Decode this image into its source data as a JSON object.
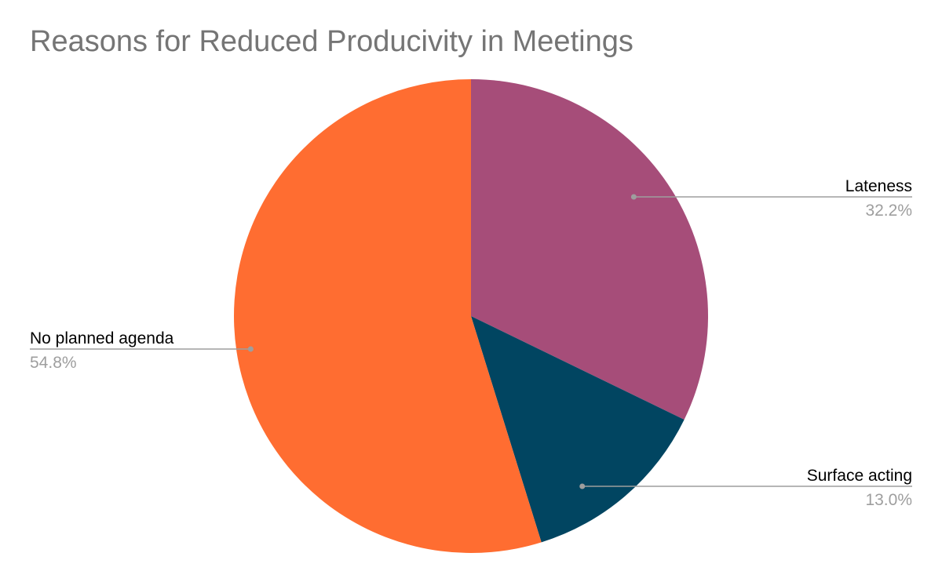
{
  "chart_data": {
    "type": "pie",
    "title": "Reasons for Reduced Producivity in Meetings",
    "slices": [
      {
        "label": "Lateness",
        "value": 32.2,
        "value_label": "32.2%",
        "color": "#a64d79"
      },
      {
        "label": "Surface acting",
        "value": 13.0,
        "value_label": "13.0%",
        "color": "#014561"
      },
      {
        "label": "No planned agenda",
        "value": 54.8,
        "value_label": "54.8%",
        "color": "#ff6d31"
      }
    ],
    "start_angle": "12 o'clock",
    "direction": "clockwise",
    "legend": "none (labels outside with leader lines)",
    "label_color": "#000000",
    "value_label_color": "#9e9e9e",
    "leader_color": "#9e9e9e"
  }
}
